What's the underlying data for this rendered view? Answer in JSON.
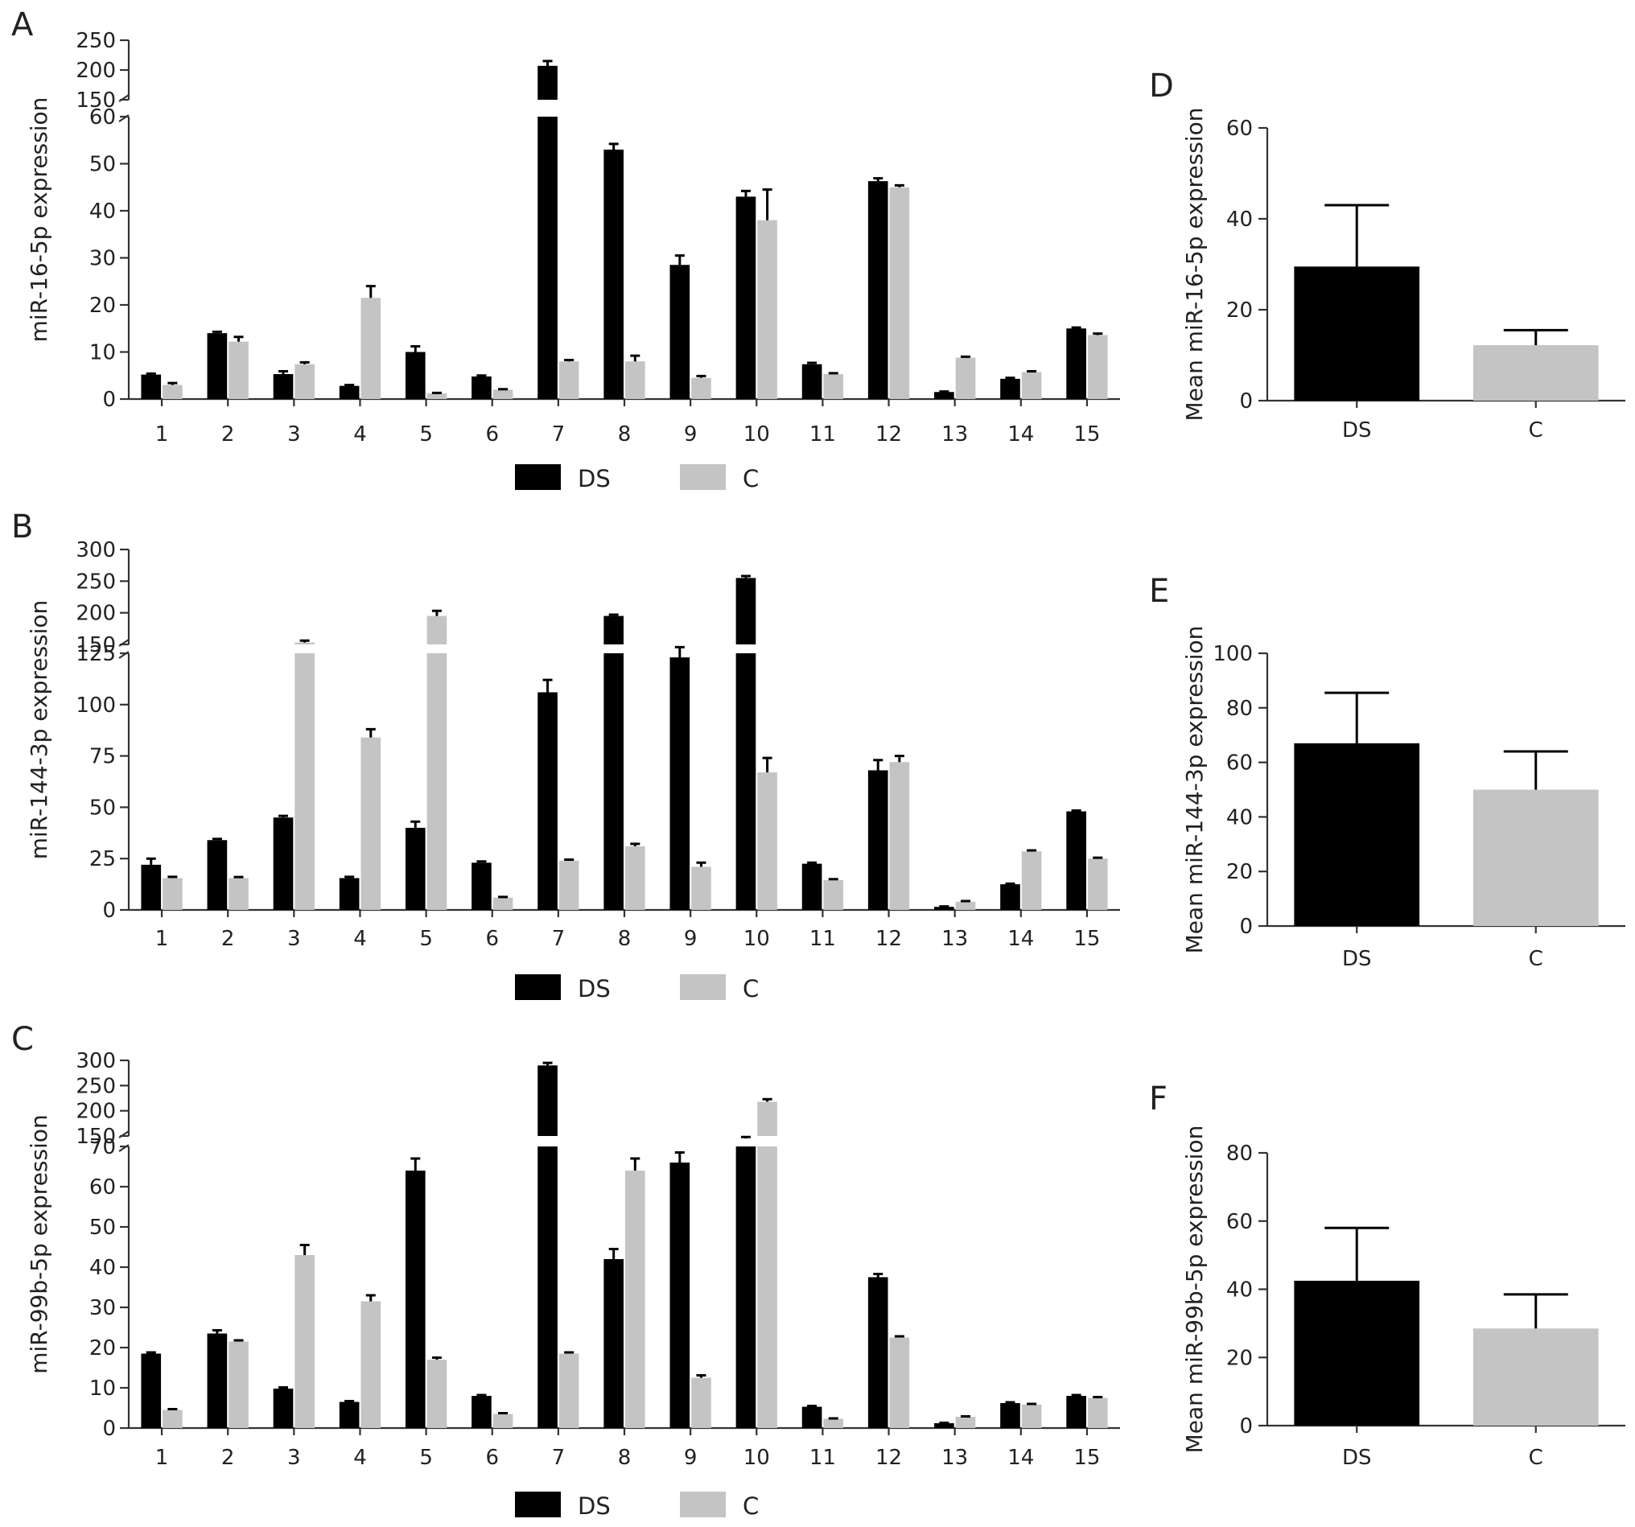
{
  "colors": {
    "DS": "#000000",
    "C": "#c4c4c4",
    "axis": "#333333"
  },
  "chart_data": [
    {
      "panel": "A",
      "type": "bar",
      "ylabel": "miR-16-5p expression",
      "categories": [
        "1",
        "2",
        "3",
        "4",
        "5",
        "6",
        "7",
        "8",
        "9",
        "10",
        "11",
        "12",
        "13",
        "14",
        "15"
      ],
      "broken_axis": true,
      "yticks_lower": [
        "0",
        "10",
        "20",
        "30",
        "40",
        "50",
        "60"
      ],
      "yticks_upper": [
        "150",
        "200",
        "250"
      ],
      "series": [
        {
          "name": "DS",
          "values": [
            5.2,
            14.0,
            5.3,
            2.8,
            10.0,
            4.8,
            207,
            53,
            28.5,
            43,
            7.4,
            46.3,
            1.5,
            4.3,
            15.0
          ],
          "errors": [
            0.2,
            0.3,
            0.6,
            0.2,
            1.2,
            0.2,
            8,
            1.2,
            2.0,
            1.2,
            0.3,
            0.6,
            0.1,
            0.2,
            0.2
          ]
        },
        {
          "name": "C",
          "values": [
            3.0,
            12.2,
            7.4,
            21.5,
            1.2,
            2.0,
            8.0,
            8.0,
            4.5,
            38,
            5.3,
            45.0,
            8.8,
            5.7,
            13.6
          ],
          "errors": [
            0.4,
            1.0,
            0.4,
            2.5,
            0.1,
            0.1,
            0.3,
            1.2,
            0.4,
            6.5,
            0.2,
            0.4,
            0.2,
            0.2,
            0.3
          ]
        }
      ]
    },
    {
      "panel": "B",
      "type": "bar",
      "ylabel": "miR-144-3p expression",
      "categories": [
        "1",
        "2",
        "3",
        "4",
        "5",
        "6",
        "7",
        "8",
        "9",
        "10",
        "11",
        "12",
        "13",
        "14",
        "15"
      ],
      "broken_axis": true,
      "yticks_lower": [
        "0",
        "25",
        "50",
        "75",
        "100",
        "125"
      ],
      "yticks_upper": [
        "150",
        "200",
        "250",
        "300"
      ],
      "series": [
        {
          "name": "DS",
          "values": [
            22,
            34,
            45,
            15.5,
            40,
            23,
            106,
            195,
            123,
            255,
            22.5,
            68,
            1.5,
            12.5,
            48
          ],
          "errors": [
            3,
            0.6,
            0.8,
            0.6,
            3,
            0.6,
            6,
            2,
            5,
            3,
            0.5,
            5,
            0.2,
            0.3,
            0.4
          ]
        },
        {
          "name": "C",
          "values": [
            15.5,
            15.5,
            153,
            84,
            195,
            6,
            24,
            31,
            21,
            67,
            14.5,
            72,
            4,
            28.5,
            25
          ],
          "errors": [
            0.6,
            0.5,
            3,
            4,
            8,
            0.3,
            0.5,
            1.2,
            2,
            7,
            0.5,
            3,
            0.3,
            0.5,
            0.4
          ]
        }
      ]
    },
    {
      "panel": "C",
      "type": "bar",
      "ylabel": "miR-99b-5p expression",
      "categories": [
        "1",
        "2",
        "3",
        "4",
        "5",
        "6",
        "7",
        "8",
        "9",
        "10",
        "11",
        "12",
        "13",
        "14",
        "15"
      ],
      "broken_axis": true,
      "yticks_lower": [
        "0",
        "10",
        "20",
        "30",
        "40",
        "50",
        "60",
        "70"
      ],
      "yticks_upper": [
        "150",
        "200",
        "250",
        "300"
      ],
      "series": [
        {
          "name": "DS",
          "values": [
            18.5,
            23.5,
            9.8,
            6.5,
            64,
            8,
            290,
            42,
            66,
            145,
            5.3,
            37.5,
            1.2,
            6.2,
            8
          ],
          "errors": [
            0.3,
            0.8,
            0.3,
            0.2,
            3,
            0.2,
            5,
            2.5,
            2.5,
            3,
            0.2,
            0.8,
            0.1,
            0.2,
            0.2
          ]
        },
        {
          "name": "C",
          "values": [
            4.5,
            21.5,
            43,
            31.5,
            17,
            3.5,
            18.5,
            64,
            12.5,
            218,
            2.3,
            22.5,
            2.8,
            5.8,
            7.5
          ],
          "errors": [
            0.2,
            0.3,
            2.5,
            1.5,
            0.5,
            0.2,
            0.3,
            3,
            0.6,
            5,
            0.1,
            0.3,
            0.1,
            0.2,
            0.2
          ]
        }
      ]
    },
    {
      "panel": "D",
      "type": "bar",
      "ylabel": "Mean miR-16-5p expression",
      "categories": [
        "DS",
        "C"
      ],
      "yticks": [
        "0",
        "20",
        "40",
        "60"
      ],
      "ylim": [
        0,
        60
      ],
      "values": [
        29.5,
        12.2
      ],
      "errors": [
        13.5,
        3.3
      ]
    },
    {
      "panel": "E",
      "type": "bar",
      "ylabel": "Mean miR-144-3p expression",
      "categories": [
        "DS",
        "C"
      ],
      "yticks": [
        "0",
        "20",
        "40",
        "60",
        "80",
        "100"
      ],
      "ylim": [
        0,
        100
      ],
      "values": [
        67,
        50
      ],
      "errors": [
        18.5,
        14
      ]
    },
    {
      "panel": "F",
      "type": "bar",
      "ylabel": "Mean miR-99b-5p expression",
      "categories": [
        "DS",
        "C"
      ],
      "yticks": [
        "0",
        "20",
        "40",
        "60",
        "80"
      ],
      "ylim": [
        0,
        80
      ],
      "values": [
        42.5,
        28.5
      ],
      "errors": [
        15.5,
        10
      ]
    }
  ]
}
